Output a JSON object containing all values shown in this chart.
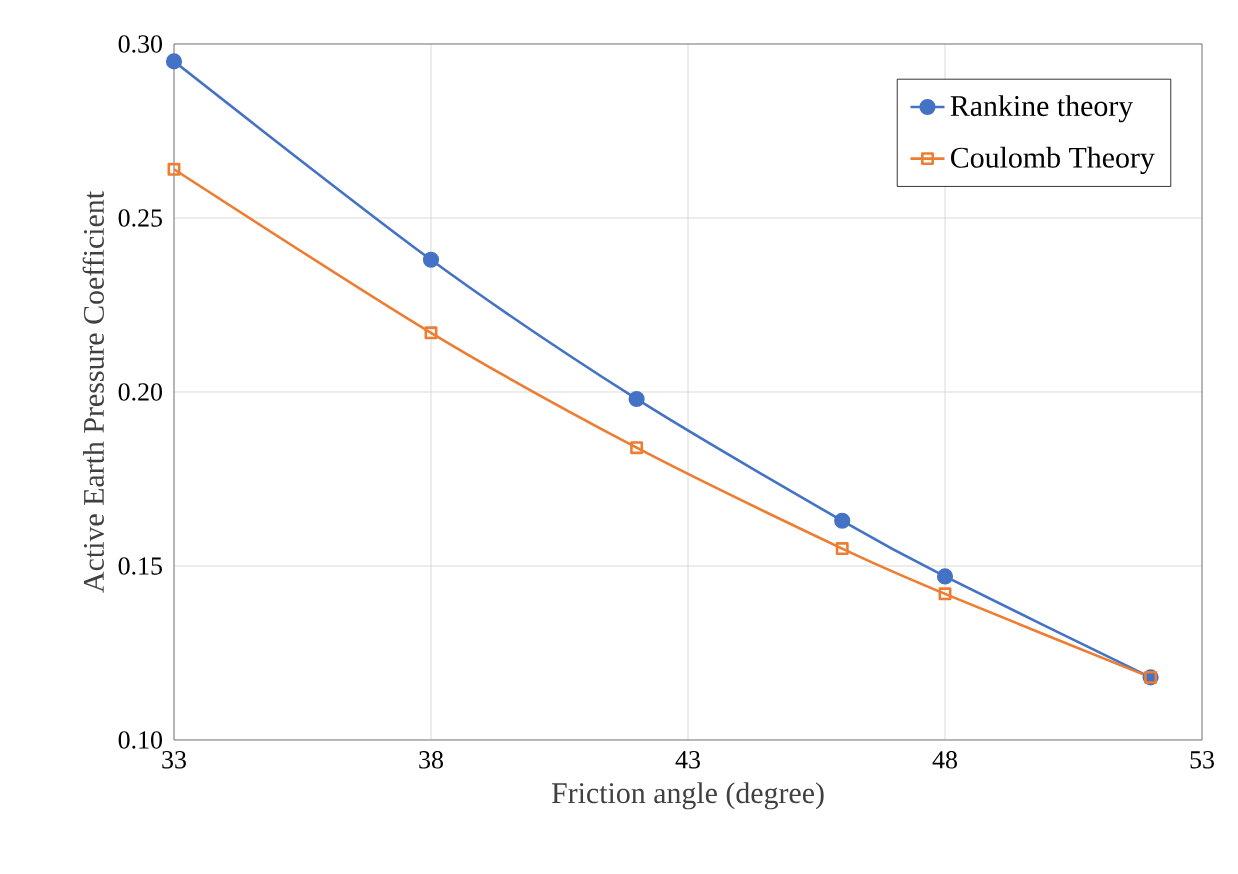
{
  "chart_data": {
    "type": "line",
    "xlabel": "Friction angle (degree)",
    "ylabel": "Active Earth Pressure Coefficient",
    "xlim": [
      33,
      53
    ],
    "xticks": [
      33,
      38,
      43,
      48,
      53
    ],
    "ylim": [
      0.1,
      0.3
    ],
    "yticks": [
      {
        "value": 0.1,
        "label": "0.10"
      },
      {
        "value": 0.15,
        "label": "0.15"
      },
      {
        "value": 0.2,
        "label": "0.20"
      },
      {
        "value": 0.25,
        "label": "0.25"
      },
      {
        "value": 0.3,
        "label": "0.30"
      }
    ],
    "grid": true,
    "legend": "top right",
    "line_style": "solid",
    "series": [
      {
        "name": "Rankine theory",
        "color": "#4472c4",
        "marker": "circle",
        "x": [
          33,
          38,
          42,
          46,
          48,
          52
        ],
        "values": [
          0.295,
          0.238,
          0.198,
          0.163,
          0.147,
          0.118
        ]
      },
      {
        "name": "Coulomb Theory",
        "color": "#ed7d31",
        "marker": "square",
        "x": [
          33,
          38,
          42,
          46,
          48,
          52
        ],
        "values": [
          0.264,
          0.217,
          0.184,
          0.155,
          0.142,
          0.118
        ]
      }
    ]
  }
}
